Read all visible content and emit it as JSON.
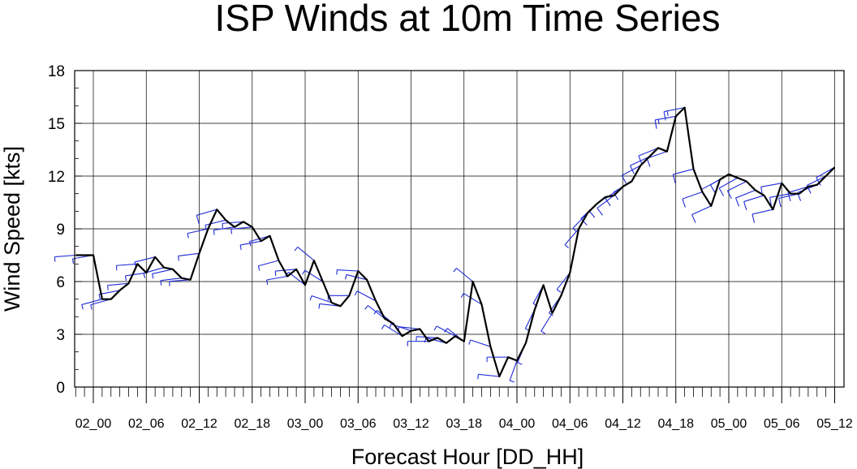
{
  "chart_data": {
    "type": "line",
    "title": "ISP Winds at 10m Time Series",
    "xlabel": "Forecast Hour [DD_HH]",
    "ylabel": "Wind Speed [kts]",
    "ylim": [
      0,
      18
    ],
    "yticks": [
      0,
      3,
      6,
      9,
      12,
      15,
      18
    ],
    "xtick_labels": [
      "02_00",
      "02_06",
      "02_12",
      "02_18",
      "03_00",
      "03_06",
      "03_12",
      "03_18",
      "04_00",
      "04_06",
      "04_12",
      "04_18",
      "05_00",
      "05_06",
      "05_12"
    ],
    "x_hours": [
      -2,
      0,
      1,
      2,
      3,
      4,
      5,
      6,
      7,
      8,
      9,
      10,
      11,
      12,
      13,
      14,
      15,
      16,
      17,
      18,
      19,
      20,
      21,
      22,
      23,
      24,
      25,
      26,
      27,
      28,
      29,
      30,
      31,
      32,
      33,
      34,
      35,
      36,
      37,
      38,
      39,
      40,
      41,
      42,
      43,
      44,
      45,
      46,
      47,
      48,
      49,
      50,
      51,
      52,
      53,
      54,
      55,
      56,
      57,
      58,
      59,
      60,
      61,
      62,
      63,
      64,
      65,
      66,
      67,
      68,
      69,
      70,
      71,
      72,
      73,
      74,
      75,
      76,
      77,
      78,
      79,
      80,
      81,
      82,
      83,
      84
    ],
    "series": [
      {
        "color": "#000000",
        "values": [
          7.5,
          7.5,
          5,
          5,
          5.5,
          5.9,
          7,
          6.5,
          7.4,
          6.8,
          6.7,
          6.2,
          6.1,
          7.6,
          9,
          10.1,
          9.5,
          9.1,
          9.4,
          9.1,
          8.3,
          8.6,
          7.2,
          6.3,
          6.7,
          5.8,
          7.2,
          6,
          4.8,
          4.6,
          5.2,
          6.6,
          6.1,
          4.9,
          3.9,
          3.6,
          2.9,
          3.2,
          3.3,
          2.6,
          2.8,
          2.5,
          2.9,
          2.6,
          6,
          4.7,
          2.3,
          0.6,
          1.7,
          1.5,
          2.5,
          4.4,
          5.8,
          4.2,
          5.2,
          6.5,
          9,
          9.9,
          10.4,
          10.8,
          10.9,
          11.4,
          11.7,
          12.6,
          13.1,
          13.6,
          13.4,
          15.4,
          15.9,
          12.4,
          11.1,
          10.3,
          11.8,
          12.1,
          11.9,
          11.7,
          11.2,
          10.9,
          10.1,
          11.6,
          11,
          11,
          11.4,
          11.5,
          12,
          12.5
        ]
      }
    ],
    "barbs": {
      "color": "#1f2bd6",
      "note": "wind direction barbs at each data point"
    }
  }
}
